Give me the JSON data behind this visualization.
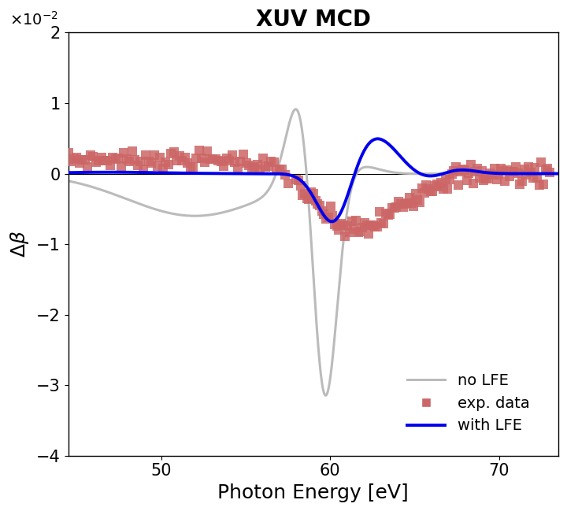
{
  "title": "XUV MCD",
  "xlabel": "Photon Energy [eV]",
  "ylabel": "$\\Delta\\beta$",
  "xlim": [
    44.5,
    73.5
  ],
  "ylim": [
    -4,
    2
  ],
  "yticks": [
    -4,
    -3,
    -2,
    -1,
    0,
    1,
    2
  ],
  "xticks": [
    50,
    60,
    70
  ],
  "title_fontsize": 20,
  "label_fontsize": 18,
  "tick_fontsize": 15,
  "legend_fontsize": 14,
  "gray_color": "#BBBBBB",
  "blue_color": "#0000EE",
  "red_color": "#CC6666",
  "gray_linewidth": 2.2,
  "blue_linewidth": 2.8,
  "marker_size": 8,
  "no_lfe_label": "no LFE",
  "exp_label": "exp. data",
  "lfe_label": "with LFE"
}
